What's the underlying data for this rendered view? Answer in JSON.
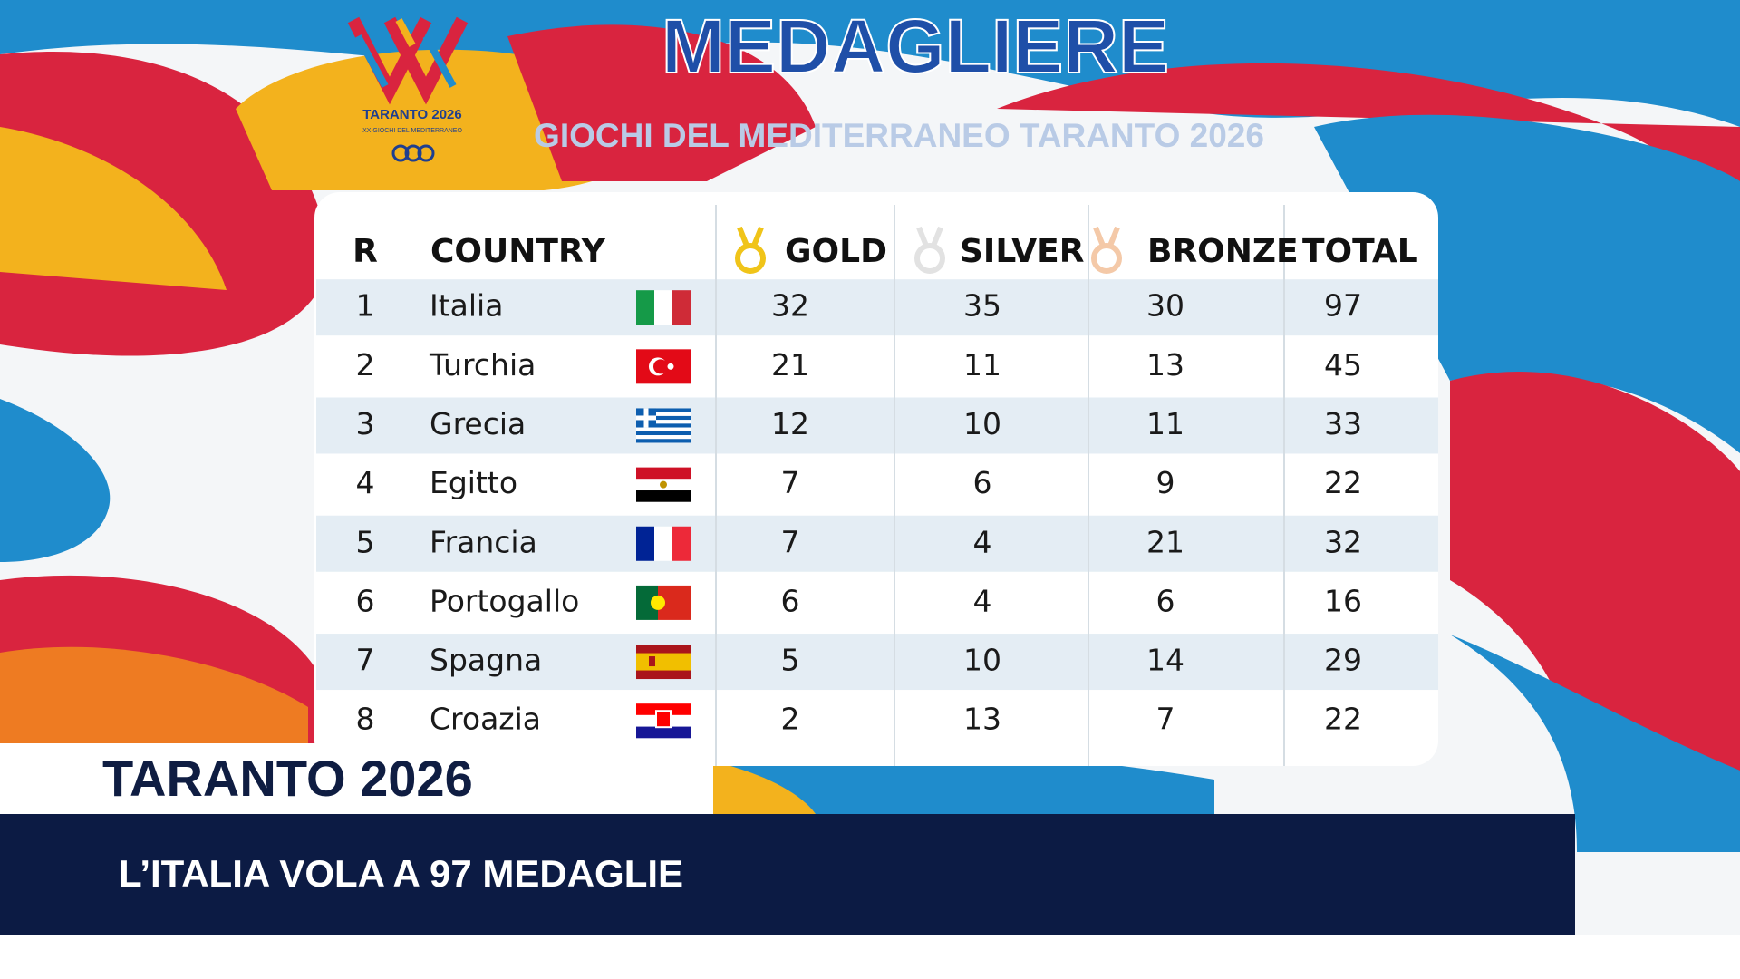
{
  "logo": {
    "name": "TARANTO 2026",
    "subtitle": "XX GIOCHI DEL MEDITERRANEO"
  },
  "header": {
    "title": "MEDAGLIERE",
    "subtitle": "GIOCHI DEL MEDITERRANEO TARANTO 2026"
  },
  "table": {
    "columns": [
      "R",
      "COUNTRY",
      "GOLD",
      "SILVER",
      "BRONZE",
      "TOTAL"
    ],
    "rows": [
      [
        1,
        "Italia",
        32,
        35,
        30,
        97
      ],
      [
        2,
        "Turchia",
        21,
        11,
        13,
        45
      ],
      [
        3,
        "Grecia",
        12,
        10,
        11,
        33
      ],
      [
        4,
        "Egitto",
        7,
        6,
        9,
        22
      ],
      [
        5,
        "Francia",
        7,
        4,
        21,
        32
      ],
      [
        6,
        "Portogallo",
        6,
        4,
        6,
        16
      ],
      [
        7,
        "Spagna",
        5,
        10,
        14,
        29
      ],
      [
        8,
        "Croazia",
        2,
        13,
        7,
        22
      ]
    ]
  },
  "lower_third": {
    "label": "TARANTO 2026",
    "headline": "L’ITALIA VOLA A 97 MEDAGLIE"
  }
}
